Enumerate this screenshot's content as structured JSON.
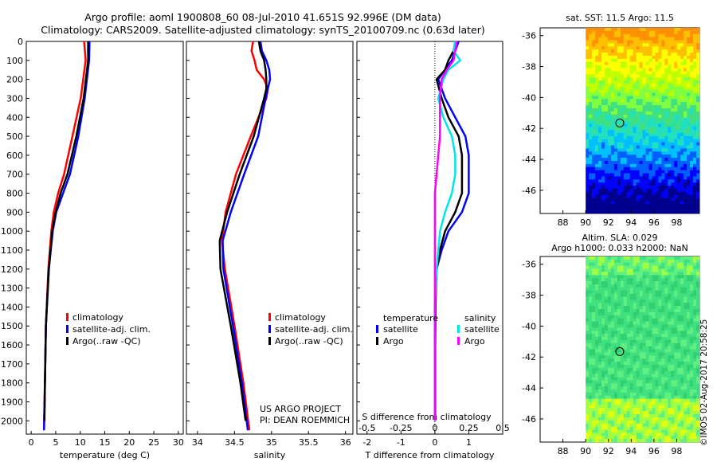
{
  "header": {
    "title_line1": "Argo profile: aoml 1900808_60 08-Jul-2010 41.651S 92.996E (DM data)",
    "title_line2": "Climatology: CARS2009. Satellite-adjusted climatology: synTS_20100709.nc (0.63d later)"
  },
  "colors": {
    "climatology": "#ff0000",
    "satellite": "#0000ff",
    "argo": "#000000",
    "salinity_satellite": "#00e5ee",
    "salinity_argo": "#ff00ff"
  },
  "chart_data": [
    {
      "type": "line",
      "xlabel": "temperature (deg C)",
      "ylabel": "",
      "ylim": [
        2070,
        0
      ],
      "xlim": [
        -1,
        31
      ],
      "xticks": [
        0,
        5,
        10,
        15,
        20,
        25,
        30
      ],
      "yticks": [
        0,
        100,
        200,
        300,
        400,
        500,
        600,
        700,
        800,
        900,
        1000,
        1100,
        1200,
        1300,
        1400,
        1500,
        1600,
        1700,
        1800,
        1900,
        2000
      ],
      "legend": [
        "climatology",
        "satellite-adj. clim.",
        "Argo(..raw -QC)"
      ],
      "series": [
        {
          "name": "climatology",
          "color": "red",
          "depth": [
            0,
            100,
            300,
            500,
            700,
            800,
            900,
            1000,
            1200,
            1500,
            1800,
            2050
          ],
          "values": [
            10.8,
            11.1,
            10.1,
            8.4,
            6.7,
            5.5,
            4.6,
            4.1,
            3.5,
            3.0,
            2.8,
            2.6
          ]
        },
        {
          "name": "satellite-adj. clim.",
          "color": "blue",
          "depth": [
            0,
            100,
            300,
            500,
            700,
            800,
            900,
            1000,
            1200,
            1500,
            1800,
            2050
          ],
          "values": [
            11.9,
            11.8,
            10.9,
            9.6,
            7.9,
            6.5,
            5.1,
            4.4,
            3.6,
            3.0,
            2.8,
            2.6
          ]
        },
        {
          "name": "Argo(..raw -QC)",
          "color": "black",
          "depth": [
            0,
            100,
            300,
            500,
            700,
            800,
            900,
            1000,
            1200,
            1500,
            1800,
            2000
          ],
          "values": [
            11.6,
            11.6,
            10.7,
            9.2,
            7.4,
            6.0,
            5.0,
            4.3,
            3.6,
            3.0,
            2.8,
            2.7
          ]
        }
      ]
    },
    {
      "type": "line",
      "xlabel": "salinity",
      "xlim": [
        33.85,
        36.1
      ],
      "xticks": [
        34,
        34.5,
        35,
        35.5,
        36
      ],
      "legend": [
        "climatology",
        "satellite-adj. clim.",
        "Argo(..raw -QC)"
      ],
      "series": [
        {
          "name": "climatology",
          "color": "red",
          "depth": [
            0,
            50,
            100,
            150,
            200,
            250,
            300,
            500,
            700,
            900,
            1050,
            1200,
            1500,
            1800,
            2050
          ],
          "values": [
            34.75,
            34.73,
            34.77,
            34.8,
            34.9,
            34.95,
            34.93,
            34.72,
            34.52,
            34.38,
            34.33,
            34.37,
            34.5,
            34.62,
            34.7
          ]
        },
        {
          "name": "satellite-adj. clim.",
          "color": "blue",
          "depth": [
            0,
            50,
            100,
            150,
            200,
            250,
            300,
            500,
            700,
            900,
            1050,
            1200,
            1500,
            1800,
            2050
          ],
          "values": [
            34.85,
            34.87,
            34.93,
            34.97,
            34.98,
            34.95,
            34.92,
            34.82,
            34.63,
            34.45,
            34.34,
            34.35,
            34.48,
            34.6,
            34.68
          ]
        },
        {
          "name": "Argo(..raw -QC)",
          "color": "black",
          "depth": [
            0,
            50,
            100,
            150,
            200,
            250,
            300,
            500,
            700,
            900,
            1050,
            1200,
            1500,
            1800,
            2000
          ],
          "values": [
            34.83,
            34.85,
            34.9,
            34.92,
            34.93,
            34.93,
            34.9,
            34.76,
            34.57,
            34.4,
            34.3,
            34.31,
            34.45,
            34.58,
            34.65
          ]
        }
      ]
    },
    {
      "type": "line",
      "xlabel": "T difference from climatology",
      "xlabel_top": "S difference from climatology",
      "xlim": [
        -2.3,
        2.0
      ],
      "xticks": [
        -2,
        -1,
        0,
        1
      ],
      "xtick_labels_top": [
        "-0.5",
        "-0.25",
        "0",
        "0.25",
        "0.5"
      ],
      "legend_groups": [
        {
          "heading": "temperature",
          "items": [
            "satellite",
            "Argo"
          ]
        },
        {
          "heading": "salinity",
          "items": [
            "satellite",
            "Argo"
          ]
        }
      ],
      "series": [
        {
          "name": "temperature satellite",
          "color": "blue",
          "depth": [
            0,
            50,
            100,
            150,
            200,
            300,
            400,
            500,
            600,
            700,
            800,
            900,
            1000,
            1100,
            1200,
            1400,
            1600,
            1800,
            2000
          ],
          "values": [
            0.7,
            0.6,
            0.5,
            0.3,
            0.1,
            0.3,
            0.6,
            0.9,
            1.0,
            1.0,
            1.0,
            0.8,
            0.4,
            0.2,
            0.05,
            0,
            0,
            0,
            0
          ]
        },
        {
          "name": "temperature Argo",
          "color": "black",
          "depth": [
            0,
            50,
            100,
            150,
            200,
            300,
            400,
            500,
            600,
            700,
            800,
            900,
            1000,
            1100,
            1200,
            1400,
            1600,
            1800,
            2000
          ],
          "values": [
            0.6,
            0.55,
            0.4,
            0.3,
            0.05,
            0.2,
            0.4,
            0.7,
            0.8,
            0.8,
            0.8,
            0.6,
            0.3,
            0.15,
            0.05,
            0.02,
            0.01,
            0.01,
            0.01
          ]
        },
        {
          "name": "salinity satellite",
          "color": "cyan",
          "depth": [
            0,
            50,
            100,
            150,
            200,
            300,
            400,
            500,
            600,
            700,
            800,
            900,
            1000,
            1200,
            1400,
            1600,
            1800,
            2000
          ],
          "values": [
            0.6,
            0.55,
            0.75,
            0.4,
            0.25,
            0.1,
            0.25,
            0.5,
            0.6,
            0.6,
            0.5,
            0.3,
            0.15,
            0.05,
            0,
            0,
            0,
            0
          ]
        },
        {
          "name": "salinity Argo",
          "color": "magenta",
          "depth": [
            0,
            50,
            100,
            150,
            200,
            300,
            400,
            500,
            600,
            700,
            800,
            900,
            1000,
            1200,
            1400,
            1600,
            1800,
            2000
          ],
          "values": [
            0.65,
            0.6,
            0.55,
            0.35,
            0.2,
            0.15,
            0.15,
            0.15,
            0.1,
            0.05,
            0,
            0,
            0,
            0,
            0,
            0,
            0,
            0
          ]
        }
      ]
    }
  ],
  "maps": {
    "top_title": "sat. SST: 11.5 Argo: 11.5",
    "bottom_title1": "Altim. SLA: 0.029",
    "bottom_title2": "Argo h1000: 0.033 h2000: NaN",
    "lat_ticks": [
      "-36",
      "-38",
      "-40",
      "-42",
      "-44",
      "-46"
    ],
    "lon_ticks": [
      "88",
      "90",
      "92",
      "94",
      "96",
      "98"
    ],
    "profile_marker": {
      "lon": 93.0,
      "lat": -41.65
    }
  },
  "annotations": {
    "project": "US ARGO PROJECT",
    "pi": "PI: DEAN ROEMMICH",
    "stamp": "©IMOS 02-Aug-2017 20:58:25"
  }
}
